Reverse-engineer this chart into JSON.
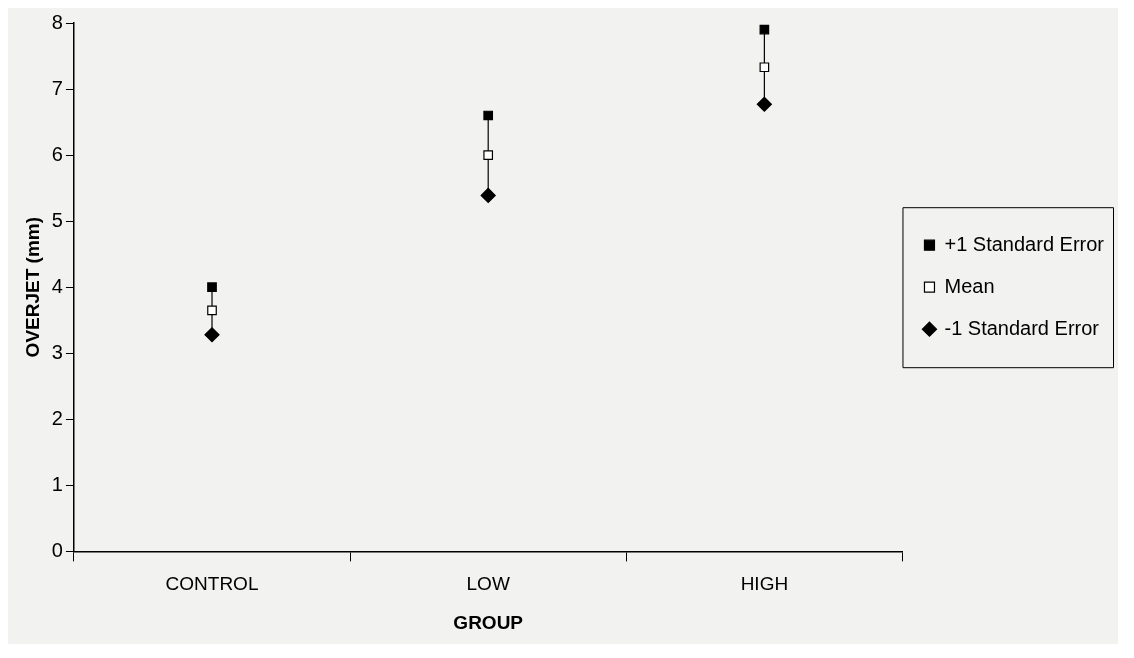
{
  "chart_data": {
    "type": "scatter",
    "xlabel": "GROUP",
    "ylabel": "OVERJET (mm)",
    "categories": [
      "CONTROL",
      "LOW",
      "HIGH"
    ],
    "ylim": [
      0,
      8
    ],
    "yticks": [
      0,
      1,
      2,
      3,
      4,
      5,
      6,
      7,
      8
    ],
    "grid": false,
    "legend": "right",
    "series": [
      {
        "name": "+1 Standard Error",
        "color": "#000000",
        "marker": "square",
        "values": [
          4.0,
          6.6,
          7.9
        ]
      },
      {
        "name": "Mean",
        "color": "#ffffff",
        "marker": "square",
        "values": [
          3.65,
          6.0,
          7.33
        ]
      },
      {
        "name": "-1 Standard Error",
        "color": "#000000",
        "marker": "diamond",
        "values": [
          3.28,
          5.39,
          6.77
        ]
      }
    ]
  }
}
